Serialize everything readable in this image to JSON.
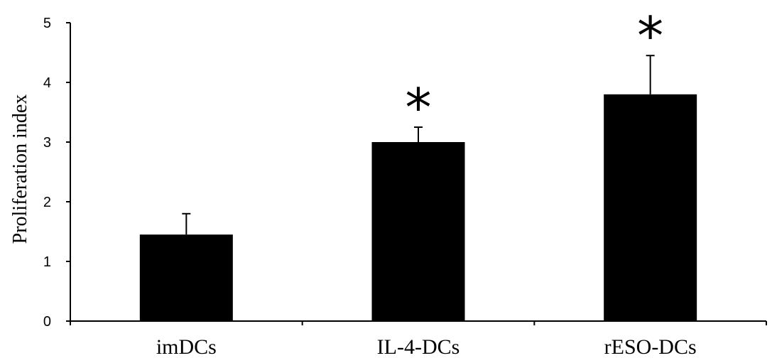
{
  "chart_data": {
    "type": "bar",
    "title": "",
    "xlabel": "",
    "ylabel": "Proliferation index",
    "categories": [
      "imDCs",
      "IL-4-DCs",
      "rESO-DCs"
    ],
    "values": [
      1.45,
      3.0,
      3.8
    ],
    "errors": [
      0.35,
      0.25,
      0.65
    ],
    "significance": [
      "",
      "*",
      "*"
    ],
    "ylim": [
      0,
      5
    ],
    "yticks": [
      0,
      1,
      2,
      3,
      4,
      5
    ],
    "grid": false,
    "legend": "none",
    "bar_color": "#000000"
  }
}
